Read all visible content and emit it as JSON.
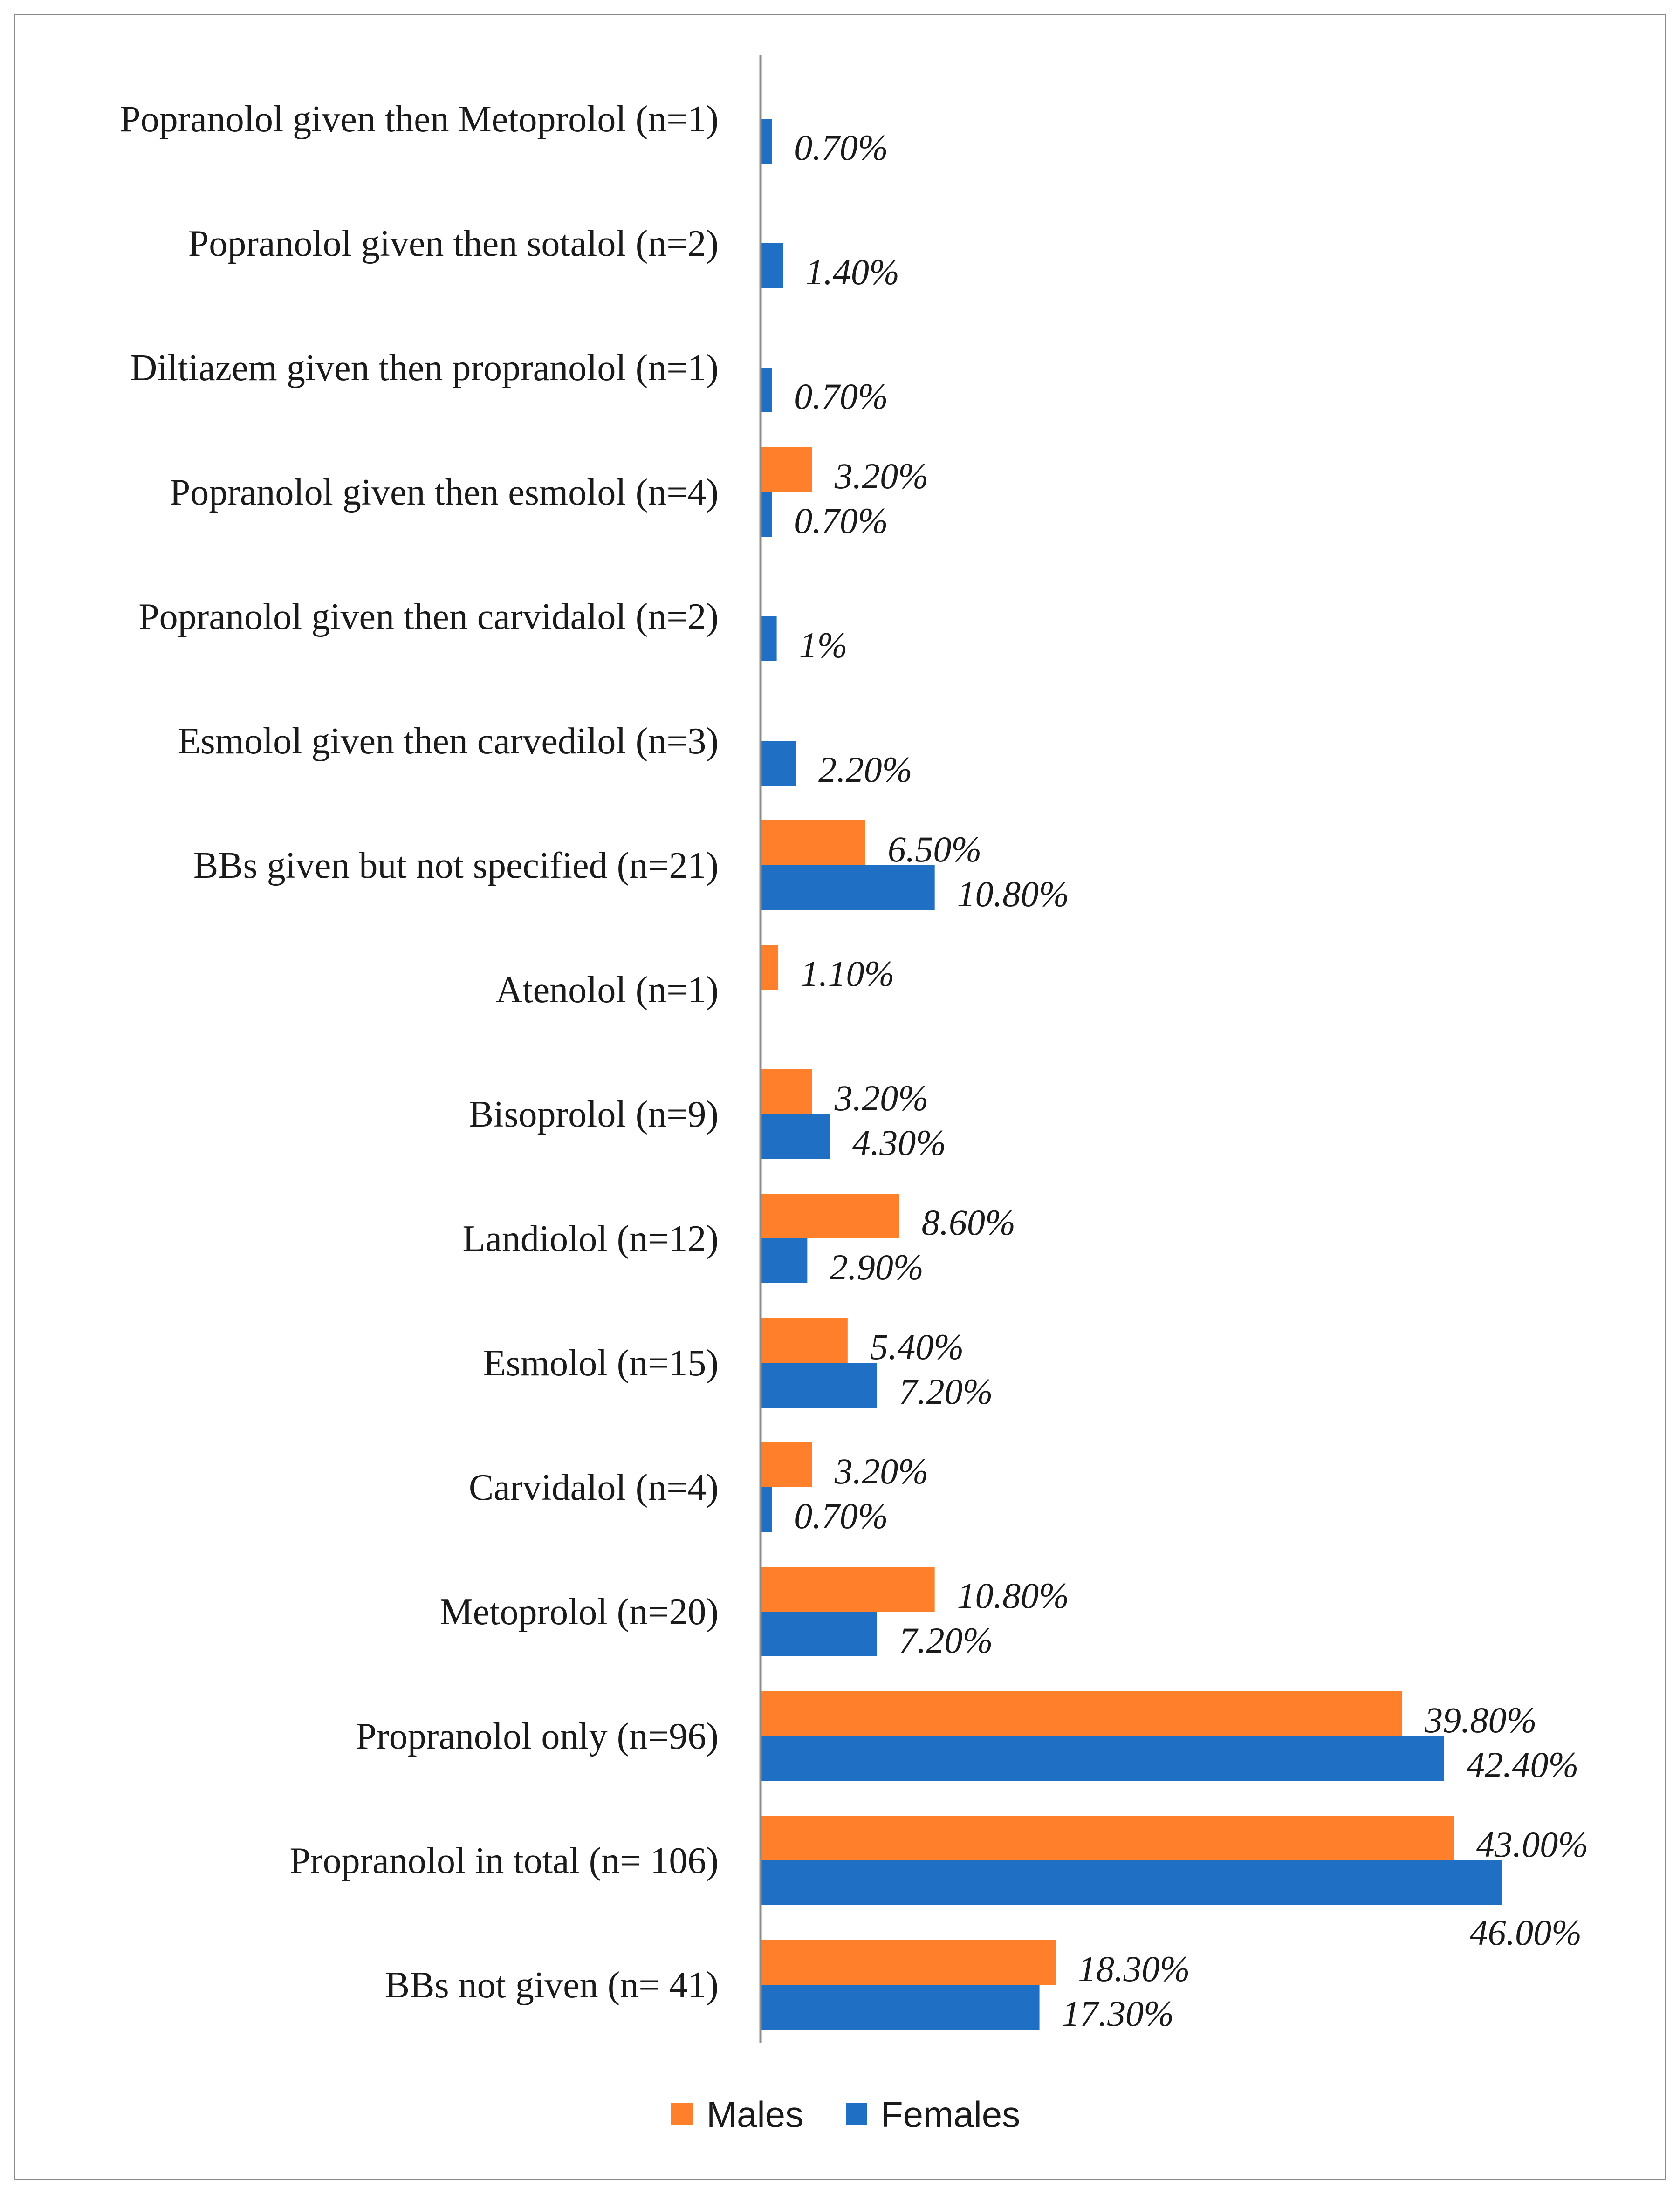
{
  "chart_data": {
    "type": "bar",
    "orientation": "horizontal",
    "title": "",
    "xlabel": "",
    "ylabel": "",
    "xlim": [
      0,
      50
    ],
    "grid": false,
    "legend_position": "bottom",
    "categories": [
      "Popranolol given then Metoprolol (n=1)",
      "Popranolol given then sotalol (n=2)",
      "Diltiazem given then propranolol (n=1)",
      "Popranolol given then esmolol (n=4)",
      "Popranolol given then carvidalol (n=2)",
      "Esmolol given then carvedilol (n=3)",
      "BBs given but not specified (n=21)",
      "Atenolol (n=1)",
      "Bisoprolol (n=9)",
      "Landiolol (n=12)",
      "Esmolol (n=15)",
      "Carvidalol (n=4)",
      "Metoprolol (n=20)",
      "Propranolol only (n=96)",
      "Propranolol in total (n= 106)",
      "BBs not given (n= 41)"
    ],
    "series": [
      {
        "name": "Males",
        "color": "#FF7F2A",
        "values": [
          null,
          null,
          null,
          3.2,
          null,
          null,
          6.5,
          1.1,
          3.2,
          8.6,
          5.4,
          3.2,
          10.8,
          39.8,
          43.0,
          18.3
        ],
        "labels": [
          null,
          null,
          null,
          "3.20%",
          null,
          null,
          "6.50%",
          "1.10%",
          "3.20%",
          "8.60%",
          "5.40%",
          "3.20%",
          "10.80%",
          "39.80%",
          "43.00%",
          "18.30%"
        ]
      },
      {
        "name": "Females",
        "color": "#1F6FC5",
        "values": [
          0.7,
          1.4,
          0.7,
          0.7,
          1.0,
          2.2,
          10.8,
          null,
          4.3,
          2.9,
          7.2,
          0.7,
          7.2,
          42.4,
          46.0,
          17.3
        ],
        "labels": [
          "0.70%",
          "1.40%",
          "0.70%",
          "0.70%",
          "1%",
          "2.20%",
          "10.80%",
          null,
          "4.30%",
          "2.90%",
          "7.20%",
          "0.70%",
          "7.20%",
          "42.40%",
          "46.00%",
          "17.30%"
        ]
      }
    ]
  }
}
